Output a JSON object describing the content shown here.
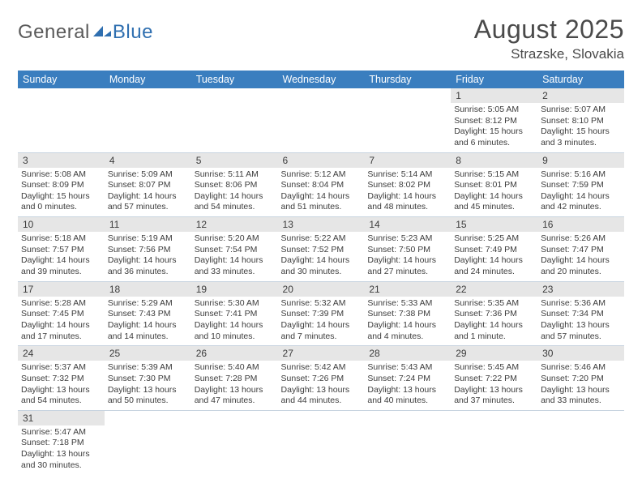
{
  "logo": {
    "general": "General",
    "blue": "Blue"
  },
  "title": "August 2025",
  "location": "Strazske, Slovakia",
  "colors": {
    "header_bg": "#3a7ebf",
    "header_text": "#ffffff",
    "daynum_bg": "#e6e6e6",
    "row_border": "#c8d4e0",
    "text": "#3c3c3c",
    "logo_general": "#5a5a5a",
    "logo_blue": "#2f6fb0",
    "page_bg": "#ffffff"
  },
  "typography": {
    "title_size_pt": 24,
    "location_size_pt": 13,
    "weekday_size_pt": 9,
    "daynum_size_pt": 9,
    "body_size_pt": 8,
    "font_family": "Arial"
  },
  "weekdays": [
    "Sunday",
    "Monday",
    "Tuesday",
    "Wednesday",
    "Thursday",
    "Friday",
    "Saturday"
  ],
  "weeks": [
    [
      null,
      null,
      null,
      null,
      null,
      {
        "n": "1",
        "sr": "Sunrise: 5:05 AM",
        "ss": "Sunset: 8:12 PM",
        "d1": "Daylight: 15 hours",
        "d2": "and 6 minutes."
      },
      {
        "n": "2",
        "sr": "Sunrise: 5:07 AM",
        "ss": "Sunset: 8:10 PM",
        "d1": "Daylight: 15 hours",
        "d2": "and 3 minutes."
      }
    ],
    [
      {
        "n": "3",
        "sr": "Sunrise: 5:08 AM",
        "ss": "Sunset: 8:09 PM",
        "d1": "Daylight: 15 hours",
        "d2": "and 0 minutes."
      },
      {
        "n": "4",
        "sr": "Sunrise: 5:09 AM",
        "ss": "Sunset: 8:07 PM",
        "d1": "Daylight: 14 hours",
        "d2": "and 57 minutes."
      },
      {
        "n": "5",
        "sr": "Sunrise: 5:11 AM",
        "ss": "Sunset: 8:06 PM",
        "d1": "Daylight: 14 hours",
        "d2": "and 54 minutes."
      },
      {
        "n": "6",
        "sr": "Sunrise: 5:12 AM",
        "ss": "Sunset: 8:04 PM",
        "d1": "Daylight: 14 hours",
        "d2": "and 51 minutes."
      },
      {
        "n": "7",
        "sr": "Sunrise: 5:14 AM",
        "ss": "Sunset: 8:02 PM",
        "d1": "Daylight: 14 hours",
        "d2": "and 48 minutes."
      },
      {
        "n": "8",
        "sr": "Sunrise: 5:15 AM",
        "ss": "Sunset: 8:01 PM",
        "d1": "Daylight: 14 hours",
        "d2": "and 45 minutes."
      },
      {
        "n": "9",
        "sr": "Sunrise: 5:16 AM",
        "ss": "Sunset: 7:59 PM",
        "d1": "Daylight: 14 hours",
        "d2": "and 42 minutes."
      }
    ],
    [
      {
        "n": "10",
        "sr": "Sunrise: 5:18 AM",
        "ss": "Sunset: 7:57 PM",
        "d1": "Daylight: 14 hours",
        "d2": "and 39 minutes."
      },
      {
        "n": "11",
        "sr": "Sunrise: 5:19 AM",
        "ss": "Sunset: 7:56 PM",
        "d1": "Daylight: 14 hours",
        "d2": "and 36 minutes."
      },
      {
        "n": "12",
        "sr": "Sunrise: 5:20 AM",
        "ss": "Sunset: 7:54 PM",
        "d1": "Daylight: 14 hours",
        "d2": "and 33 minutes."
      },
      {
        "n": "13",
        "sr": "Sunrise: 5:22 AM",
        "ss": "Sunset: 7:52 PM",
        "d1": "Daylight: 14 hours",
        "d2": "and 30 minutes."
      },
      {
        "n": "14",
        "sr": "Sunrise: 5:23 AM",
        "ss": "Sunset: 7:50 PM",
        "d1": "Daylight: 14 hours",
        "d2": "and 27 minutes."
      },
      {
        "n": "15",
        "sr": "Sunrise: 5:25 AM",
        "ss": "Sunset: 7:49 PM",
        "d1": "Daylight: 14 hours",
        "d2": "and 24 minutes."
      },
      {
        "n": "16",
        "sr": "Sunrise: 5:26 AM",
        "ss": "Sunset: 7:47 PM",
        "d1": "Daylight: 14 hours",
        "d2": "and 20 minutes."
      }
    ],
    [
      {
        "n": "17",
        "sr": "Sunrise: 5:28 AM",
        "ss": "Sunset: 7:45 PM",
        "d1": "Daylight: 14 hours",
        "d2": "and 17 minutes."
      },
      {
        "n": "18",
        "sr": "Sunrise: 5:29 AM",
        "ss": "Sunset: 7:43 PM",
        "d1": "Daylight: 14 hours",
        "d2": "and 14 minutes."
      },
      {
        "n": "19",
        "sr": "Sunrise: 5:30 AM",
        "ss": "Sunset: 7:41 PM",
        "d1": "Daylight: 14 hours",
        "d2": "and 10 minutes."
      },
      {
        "n": "20",
        "sr": "Sunrise: 5:32 AM",
        "ss": "Sunset: 7:39 PM",
        "d1": "Daylight: 14 hours",
        "d2": "and 7 minutes."
      },
      {
        "n": "21",
        "sr": "Sunrise: 5:33 AM",
        "ss": "Sunset: 7:38 PM",
        "d1": "Daylight: 14 hours",
        "d2": "and 4 minutes."
      },
      {
        "n": "22",
        "sr": "Sunrise: 5:35 AM",
        "ss": "Sunset: 7:36 PM",
        "d1": "Daylight: 14 hours",
        "d2": "and 1 minute."
      },
      {
        "n": "23",
        "sr": "Sunrise: 5:36 AM",
        "ss": "Sunset: 7:34 PM",
        "d1": "Daylight: 13 hours",
        "d2": "and 57 minutes."
      }
    ],
    [
      {
        "n": "24",
        "sr": "Sunrise: 5:37 AM",
        "ss": "Sunset: 7:32 PM",
        "d1": "Daylight: 13 hours",
        "d2": "and 54 minutes."
      },
      {
        "n": "25",
        "sr": "Sunrise: 5:39 AM",
        "ss": "Sunset: 7:30 PM",
        "d1": "Daylight: 13 hours",
        "d2": "and 50 minutes."
      },
      {
        "n": "26",
        "sr": "Sunrise: 5:40 AM",
        "ss": "Sunset: 7:28 PM",
        "d1": "Daylight: 13 hours",
        "d2": "and 47 minutes."
      },
      {
        "n": "27",
        "sr": "Sunrise: 5:42 AM",
        "ss": "Sunset: 7:26 PM",
        "d1": "Daylight: 13 hours",
        "d2": "and 44 minutes."
      },
      {
        "n": "28",
        "sr": "Sunrise: 5:43 AM",
        "ss": "Sunset: 7:24 PM",
        "d1": "Daylight: 13 hours",
        "d2": "and 40 minutes."
      },
      {
        "n": "29",
        "sr": "Sunrise: 5:45 AM",
        "ss": "Sunset: 7:22 PM",
        "d1": "Daylight: 13 hours",
        "d2": "and 37 minutes."
      },
      {
        "n": "30",
        "sr": "Sunrise: 5:46 AM",
        "ss": "Sunset: 7:20 PM",
        "d1": "Daylight: 13 hours",
        "d2": "and 33 minutes."
      }
    ],
    [
      {
        "n": "31",
        "sr": "Sunrise: 5:47 AM",
        "ss": "Sunset: 7:18 PM",
        "d1": "Daylight: 13 hours",
        "d2": "and 30 minutes."
      },
      null,
      null,
      null,
      null,
      null,
      null
    ]
  ]
}
